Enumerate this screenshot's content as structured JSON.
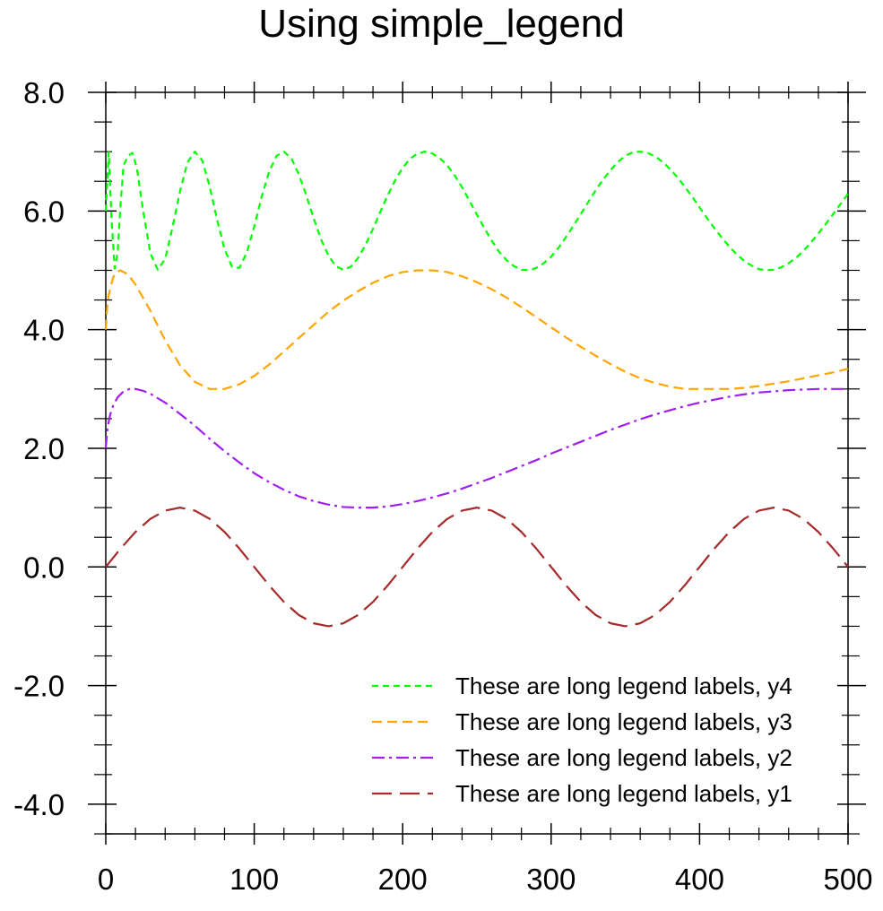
{
  "chart_data": {
    "type": "line",
    "title": "Using simple_legend",
    "xlabel": "",
    "ylabel": "",
    "xlim": [
      0,
      500
    ],
    "ylim": [
      -4.5,
      8.0
    ],
    "x_ticks": [
      0,
      100,
      200,
      300,
      400,
      500
    ],
    "x_tick_labels": [
      "0",
      "100",
      "200",
      "300",
      "400",
      "500"
    ],
    "y_ticks": [
      -4.0,
      -2.0,
      0.0,
      2.0,
      4.0,
      6.0,
      8.0
    ],
    "y_tick_labels": [
      "-4.0",
      "-2.0",
      "0.0",
      "2.0",
      "4.0",
      "6.0",
      "8.0"
    ],
    "x_minor_step": 20,
    "y_minor_step": 0.5,
    "grid": false,
    "legend_position": "bottom-right",
    "series": [
      {
        "name": "These are long legend labels, y4",
        "color": "#00ff00",
        "dash": "dotted",
        "x": [
          0,
          2,
          4,
          6,
          8,
          10,
          12,
          15,
          18,
          21,
          25,
          30,
          35,
          40,
          45,
          50,
          55,
          60,
          65,
          70,
          75,
          80,
          85,
          90,
          95,
          100,
          105,
          110,
          115,
          120,
          125,
          130,
          135,
          140,
          145,
          150,
          155,
          160,
          165,
          170,
          175,
          180,
          185,
          190,
          195,
          200,
          205,
          210,
          215,
          220,
          225,
          230,
          235,
          240,
          245,
          250,
          255,
          260,
          265,
          270,
          275,
          280,
          285,
          290,
          295,
          300,
          305,
          310,
          315,
          320,
          325,
          330,
          335,
          340,
          345,
          350,
          355,
          360,
          365,
          370,
          375,
          380,
          385,
          390,
          395,
          400,
          405,
          410,
          415,
          420,
          425,
          430,
          435,
          440,
          445,
          450,
          455,
          460,
          465,
          470,
          475,
          480,
          485,
          490,
          495,
          500
        ],
        "values": [
          6.0,
          6.99,
          5.8,
          5.03,
          5.3,
          6.13,
          6.77,
          6.93,
          6.98,
          6.72,
          6.03,
          5.29,
          5.01,
          5.19,
          5.73,
          6.33,
          6.82,
          7.0,
          6.85,
          6.41,
          5.85,
          5.36,
          5.06,
          5.04,
          5.3,
          5.74,
          6.24,
          6.66,
          6.93,
          7.0,
          6.89,
          6.62,
          6.27,
          5.88,
          5.52,
          5.25,
          5.07,
          5.01,
          5.06,
          5.21,
          5.43,
          5.7,
          5.99,
          6.27,
          6.52,
          6.73,
          6.88,
          6.97,
          7.0,
          6.97,
          6.89,
          6.77,
          6.6,
          6.4,
          6.17,
          5.94,
          5.71,
          5.5,
          5.31,
          5.17,
          5.07,
          5.01,
          5.0,
          5.04,
          5.12,
          5.23,
          5.38,
          5.56,
          5.75,
          5.95,
          6.15,
          6.35,
          6.53,
          6.69,
          6.83,
          6.93,
          6.99,
          7.0,
          6.98,
          6.92,
          6.83,
          6.71,
          6.57,
          6.41,
          6.24,
          6.06,
          5.88,
          5.71,
          5.55,
          5.4,
          5.27,
          5.16,
          5.08,
          5.02,
          5.0,
          5.01,
          5.05,
          5.12,
          5.21,
          5.33,
          5.47,
          5.62,
          5.78,
          5.95,
          6.12,
          6.29
        ],
        "values_tail_note": ""
      },
      {
        "name": "These are long legend labels, y3",
        "color": "#ffa500",
        "dash": "dashed",
        "x": [
          0,
          1,
          2,
          3,
          5,
          7,
          10,
          15,
          20,
          30,
          40,
          50,
          60,
          70,
          80,
          90,
          100,
          110,
          120,
          130,
          140,
          150,
          160,
          170,
          180,
          190,
          200,
          210,
          220,
          230,
          240,
          250,
          260,
          270,
          280,
          290,
          300,
          310,
          320,
          330,
          340,
          350,
          360,
          370,
          380,
          390,
          400,
          410,
          420,
          430,
          440,
          450,
          460,
          470,
          480,
          490,
          500
        ],
        "values": [
          4.0,
          4.4,
          4.58,
          4.7,
          4.88,
          4.97,
          5.0,
          4.93,
          4.76,
          4.32,
          3.82,
          3.4,
          3.12,
          3.0,
          3.0,
          3.08,
          3.22,
          3.41,
          3.63,
          3.86,
          4.08,
          4.3,
          4.49,
          4.65,
          4.79,
          4.9,
          4.97,
          5.0,
          5.0,
          4.97,
          4.9,
          4.8,
          4.68,
          4.54,
          4.38,
          4.21,
          4.04,
          3.87,
          3.71,
          3.56,
          3.42,
          3.29,
          3.18,
          3.1,
          3.04,
          3.0,
          3.0,
          3.0,
          3.0,
          3.02,
          3.05,
          3.09,
          3.13,
          3.18,
          3.23,
          3.28,
          3.34
        ]
      },
      {
        "name": "These are long legend labels, y2",
        "color": "#a020f0",
        "dash": "dashdot",
        "x": [
          0,
          1,
          2,
          3,
          5,
          8,
          12,
          16,
          20,
          25,
          30,
          40,
          50,
          60,
          70,
          80,
          90,
          100,
          110,
          120,
          130,
          140,
          150,
          160,
          170,
          180,
          190,
          200,
          210,
          220,
          230,
          240,
          250,
          260,
          270,
          280,
          290,
          300,
          310,
          320,
          330,
          340,
          350,
          360,
          370,
          380,
          390,
          400,
          410,
          420,
          430,
          440,
          450,
          460,
          470,
          480,
          490,
          500
        ],
        "values": [
          2.0,
          2.3,
          2.45,
          2.57,
          2.72,
          2.86,
          2.96,
          3.0,
          3.0,
          2.97,
          2.92,
          2.77,
          2.58,
          2.38,
          2.16,
          1.95,
          1.76,
          1.58,
          1.43,
          1.3,
          1.19,
          1.11,
          1.05,
          1.01,
          1.0,
          1.0,
          1.02,
          1.06,
          1.11,
          1.17,
          1.24,
          1.32,
          1.41,
          1.5,
          1.6,
          1.7,
          1.8,
          1.91,
          2.01,
          2.11,
          2.21,
          2.31,
          2.4,
          2.49,
          2.57,
          2.64,
          2.71,
          2.77,
          2.82,
          2.87,
          2.91,
          2.94,
          2.96,
          2.98,
          2.99,
          3.0,
          3.0,
          3.0
        ]
      },
      {
        "name": "These are long legend labels, y1",
        "color": "#a52a2a",
        "dash": "longdash",
        "x": [
          0,
          10,
          20,
          30,
          40,
          50,
          60,
          70,
          80,
          90,
          100,
          110,
          120,
          130,
          140,
          150,
          160,
          170,
          180,
          190,
          200,
          210,
          220,
          230,
          240,
          250,
          260,
          270,
          280,
          290,
          300,
          310,
          320,
          330,
          340,
          350,
          360,
          370,
          380,
          390,
          400,
          410,
          420,
          430,
          440,
          450,
          460,
          470,
          480,
          490,
          500
        ],
        "values": [
          0.0,
          0.31,
          0.59,
          0.81,
          0.95,
          1.0,
          0.95,
          0.81,
          0.59,
          0.31,
          0.0,
          -0.31,
          -0.59,
          -0.81,
          -0.95,
          -1.0,
          -0.95,
          -0.81,
          -0.59,
          -0.31,
          0.0,
          0.31,
          0.59,
          0.81,
          0.95,
          1.0,
          0.95,
          0.81,
          0.59,
          0.31,
          0.0,
          -0.31,
          -0.59,
          -0.81,
          -0.95,
          -1.0,
          -0.95,
          -0.81,
          -0.59,
          -0.31,
          0.0,
          0.31,
          0.59,
          0.81,
          0.95,
          1.0,
          0.95,
          0.81,
          0.59,
          0.31,
          0.0
        ]
      }
    ]
  }
}
